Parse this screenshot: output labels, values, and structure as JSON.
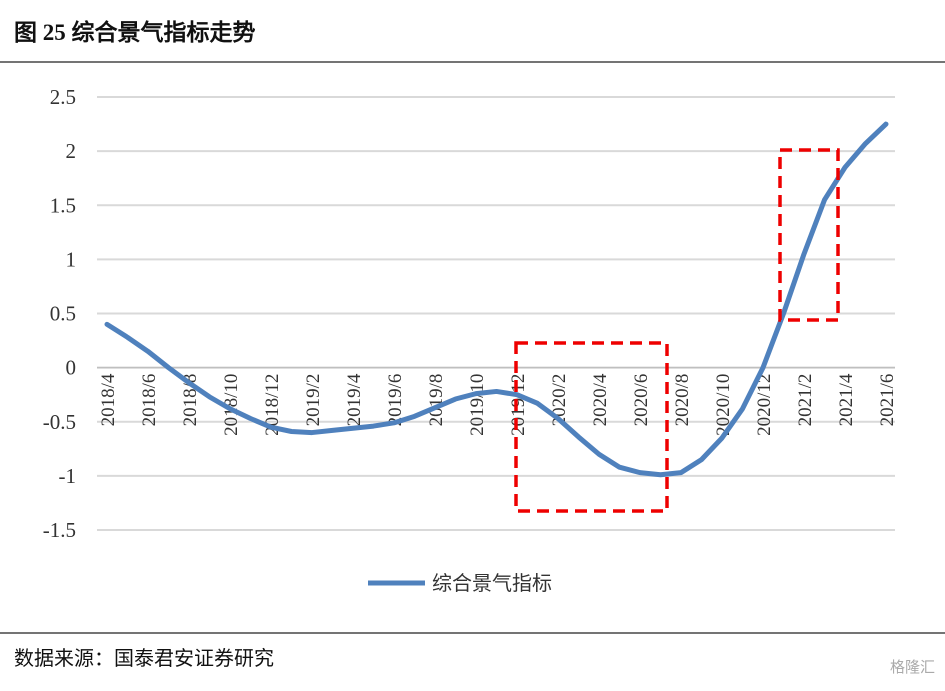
{
  "header": {
    "title": "图 25  综合景气指标走势"
  },
  "chart_data": {
    "type": "line",
    "categories": [
      "2018/4",
      null,
      "2018/6",
      null,
      "2018/8",
      null,
      "2018/10",
      null,
      "2018/12",
      null,
      "2019/2",
      null,
      "2019/4",
      null,
      "2019/6",
      null,
      "2019/8",
      null,
      "2019/10",
      null,
      "2019/12",
      null,
      "2020/2",
      null,
      "2020/4",
      null,
      "2020/6",
      null,
      "2020/8",
      null,
      "2020/10",
      null,
      "2020/12",
      null,
      "2021/2",
      null,
      "2021/4",
      null,
      "2021/6"
    ],
    "series": [
      {
        "name": "综合景气指标",
        "color": "#4f81bd",
        "values": [
          0.4,
          0.28,
          0.15,
          0.0,
          -0.14,
          -0.27,
          -0.38,
          -0.47,
          -0.55,
          -0.59,
          -0.6,
          -0.58,
          -0.56,
          -0.54,
          -0.51,
          -0.45,
          -0.37,
          -0.29,
          -0.24,
          -0.22,
          -0.25,
          -0.33,
          -0.47,
          -0.64,
          -0.8,
          -0.92,
          -0.97,
          -0.99,
          -0.97,
          -0.85,
          -0.65,
          -0.38,
          0.0,
          0.5,
          1.05,
          1.55,
          1.85,
          2.07,
          2.25
        ]
      }
    ],
    "ylim": [
      -1.5,
      2.5
    ],
    "yticks": [
      2.5,
      2,
      1.5,
      1,
      0.5,
      0,
      -0.5,
      -1,
      -1.5
    ],
    "grid": true,
    "legend": "bottom"
  },
  "footer": {
    "source": "数据来源：国泰君安证券研究",
    "watermark": "格隆汇"
  }
}
